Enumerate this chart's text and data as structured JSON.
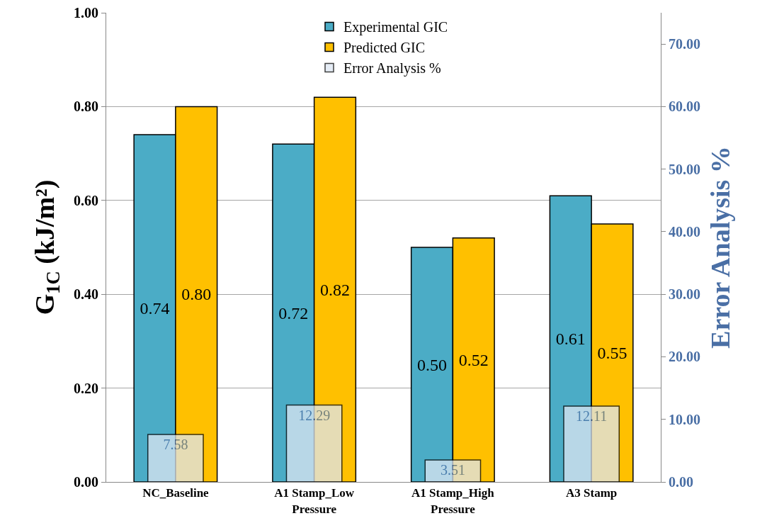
{
  "chart_data": {
    "type": "bar",
    "ylabel": "G$_{1C}$ (kJ/m²)",
    "y2label": "Error Analysis %",
    "categories": [
      "NC_Baseline",
      "A1 Stamp_Low Pressure",
      "A1 Stamp_High Pressure",
      "A3 Stamp"
    ],
    "series": [
      {
        "name": "Experimental GIC",
        "color": "#4bacc6",
        "values": [
          0.74,
          0.72,
          0.5,
          0.61
        ],
        "value_labels": [
          "0.74",
          "0.72",
          "0.50",
          "0.61"
        ]
      },
      {
        "name": "Predicted GIC",
        "color": "#ffc000",
        "values": [
          0.8,
          0.82,
          0.52,
          0.55
        ],
        "value_labels": [
          "0.80",
          "0.82",
          "0.52",
          "0.55"
        ]
      },
      {
        "name": "Error Analysis %",
        "color": "#dce6f2",
        "axis": "y2",
        "values": [
          7.58,
          12.29,
          3.51,
          12.11
        ],
        "value_labels": [
          "7.58",
          "12.29",
          "3.51",
          "12.11"
        ]
      }
    ],
    "ylim": [
      0,
      1
    ],
    "yticks": [
      {
        "value": 0,
        "label": "0.00"
      },
      {
        "value": 0.2,
        "label": "0.20"
      },
      {
        "value": 0.4,
        "label": "0.40"
      },
      {
        "value": 0.6,
        "label": "0.60"
      },
      {
        "value": 0.8,
        "label": "0.80"
      },
      {
        "value": 1,
        "label": "1.00"
      }
    ],
    "y2lim": [
      0,
      75
    ],
    "y2ticks": [
      {
        "value": 0,
        "label": "0.00"
      },
      {
        "value": 10,
        "label": "10.00"
      },
      {
        "value": 20,
        "label": "20.00"
      },
      {
        "value": 30,
        "label": "30.00"
      },
      {
        "value": 40,
        "label": "40.00"
      },
      {
        "value": 50,
        "label": "50.00"
      },
      {
        "value": 60,
        "label": "60.00"
      },
      {
        "value": 70,
        "label": "70.00"
      }
    ],
    "grid": "y",
    "legend": "top"
  }
}
